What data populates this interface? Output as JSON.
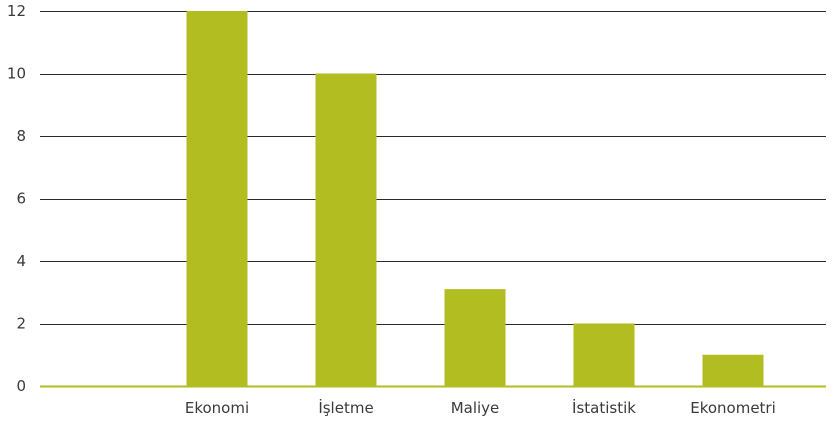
{
  "chart_data": {
    "type": "bar",
    "categories": [
      "Ekonomi",
      "İşletme",
      "Maliye",
      "İstatistik",
      "Ekonometri"
    ],
    "values": [
      12,
      10,
      3.1,
      2,
      1
    ],
    "ylim": [
      0,
      12
    ],
    "yticks": [
      0,
      2,
      4,
      6,
      8,
      10,
      12
    ],
    "ytick_labels": [
      "0",
      "2",
      "4",
      "6",
      "8",
      "10",
      "12"
    ],
    "grid": true,
    "bar_color": "#b1bd21",
    "grid_color": "#2b2b2b",
    "baseline_color": "#b1bd21"
  }
}
